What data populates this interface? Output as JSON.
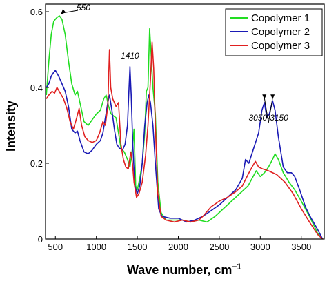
{
  "chart_data": {
    "type": "line",
    "xlabel": "Wave number, cm",
    "xlabel_sup": "−1",
    "ylabel": "Intensity",
    "xlim": [
      380,
      3780
    ],
    "ylim": [
      0,
      0.62
    ],
    "xticks": [
      500,
      1000,
      1500,
      2000,
      2500,
      3000,
      3500
    ],
    "xtick_labels": [
      "500",
      "1000",
      "1500",
      "2000",
      "2500",
      "3000",
      "3500"
    ],
    "yticks": [
      0,
      0.2,
      0.4,
      0.6
    ],
    "ytick_labels": [
      "0",
      "0.2",
      "0.4",
      "0.6"
    ],
    "grid": false,
    "legend_position": "top-right",
    "annotations": [
      {
        "text": "550",
        "x": 550,
        "y": 0.589
      },
      {
        "text": "1410",
        "x": 1410,
        "y": 0.455
      },
      {
        "text": "3050-3150",
        "x": 3100,
        "y": 0.365
      }
    ],
    "series": [
      {
        "name": "Copolymer 1",
        "color": "#22dd22",
        "points": [
          [
            390,
            0.38
          ],
          [
            420,
            0.47
          ],
          [
            450,
            0.54
          ],
          [
            480,
            0.575
          ],
          [
            520,
            0.585
          ],
          [
            550,
            0.589
          ],
          [
            580,
            0.58
          ],
          [
            620,
            0.54
          ],
          [
            660,
            0.47
          ],
          [
            700,
            0.41
          ],
          [
            740,
            0.38
          ],
          [
            770,
            0.39
          ],
          [
            800,
            0.36
          ],
          [
            850,
            0.31
          ],
          [
            900,
            0.3
          ],
          [
            950,
            0.315
          ],
          [
            1000,
            0.33
          ],
          [
            1050,
            0.34
          ],
          [
            1090,
            0.37
          ],
          [
            1120,
            0.38
          ],
          [
            1150,
            0.35
          ],
          [
            1180,
            0.33
          ],
          [
            1210,
            0.325
          ],
          [
            1240,
            0.32
          ],
          [
            1270,
            0.28
          ],
          [
            1300,
            0.24
          ],
          [
            1340,
            0.23
          ],
          [
            1380,
            0.21
          ],
          [
            1410,
            0.19
          ],
          [
            1440,
            0.24
          ],
          [
            1460,
            0.29
          ],
          [
            1480,
            0.14
          ],
          [
            1500,
            0.13
          ],
          [
            1530,
            0.16
          ],
          [
            1560,
            0.2
          ],
          [
            1590,
            0.28
          ],
          [
            1610,
            0.39
          ],
          [
            1630,
            0.4
          ],
          [
            1650,
            0.555
          ],
          [
            1665,
            0.5
          ],
          [
            1690,
            0.4
          ],
          [
            1720,
            0.33
          ],
          [
            1750,
            0.15
          ],
          [
            1790,
            0.07
          ],
          [
            1850,
            0.05
          ],
          [
            1950,
            0.05
          ],
          [
            2050,
            0.05
          ],
          [
            2150,
            0.045
          ],
          [
            2250,
            0.05
          ],
          [
            2350,
            0.045
          ],
          [
            2450,
            0.06
          ],
          [
            2550,
            0.08
          ],
          [
            2650,
            0.1
          ],
          [
            2750,
            0.12
          ],
          [
            2850,
            0.14
          ],
          [
            2950,
            0.18
          ],
          [
            3000,
            0.165
          ],
          [
            3050,
            0.175
          ],
          [
            3100,
            0.19
          ],
          [
            3150,
            0.21
          ],
          [
            3180,
            0.225
          ],
          [
            3220,
            0.21
          ],
          [
            3280,
            0.175
          ],
          [
            3350,
            0.15
          ],
          [
            3420,
            0.13
          ],
          [
            3500,
            0.1
          ],
          [
            3600,
            0.06
          ],
          [
            3700,
            0.015
          ],
          [
            3760,
            0.0
          ]
        ]
      },
      {
        "name": "Copolymer 2",
        "color": "#1a1ab5",
        "points": [
          [
            390,
            0.4
          ],
          [
            420,
            0.41
          ],
          [
            450,
            0.43
          ],
          [
            480,
            0.44
          ],
          [
            500,
            0.445
          ],
          [
            540,
            0.43
          ],
          [
            580,
            0.41
          ],
          [
            620,
            0.39
          ],
          [
            660,
            0.35
          ],
          [
            700,
            0.29
          ],
          [
            740,
            0.28
          ],
          [
            770,
            0.285
          ],
          [
            800,
            0.26
          ],
          [
            850,
            0.23
          ],
          [
            900,
            0.225
          ],
          [
            950,
            0.235
          ],
          [
            1000,
            0.25
          ],
          [
            1050,
            0.26
          ],
          [
            1080,
            0.28
          ],
          [
            1110,
            0.32
          ],
          [
            1140,
            0.36
          ],
          [
            1160,
            0.38
          ],
          [
            1190,
            0.34
          ],
          [
            1220,
            0.29
          ],
          [
            1250,
            0.25
          ],
          [
            1280,
            0.24
          ],
          [
            1320,
            0.235
          ],
          [
            1350,
            0.25
          ],
          [
            1380,
            0.3
          ],
          [
            1395,
            0.38
          ],
          [
            1410,
            0.455
          ],
          [
            1425,
            0.38
          ],
          [
            1445,
            0.25
          ],
          [
            1470,
            0.14
          ],
          [
            1500,
            0.12
          ],
          [
            1530,
            0.14
          ],
          [
            1560,
            0.2
          ],
          [
            1590,
            0.3
          ],
          [
            1620,
            0.36
          ],
          [
            1640,
            0.38
          ],
          [
            1660,
            0.36
          ],
          [
            1690,
            0.3
          ],
          [
            1720,
            0.2
          ],
          [
            1760,
            0.08
          ],
          [
            1800,
            0.06
          ],
          [
            1900,
            0.055
          ],
          [
            2000,
            0.055
          ],
          [
            2100,
            0.045
          ],
          [
            2200,
            0.05
          ],
          [
            2300,
            0.06
          ],
          [
            2400,
            0.075
          ],
          [
            2500,
            0.09
          ],
          [
            2600,
            0.11
          ],
          [
            2700,
            0.13
          ],
          [
            2780,
            0.16
          ],
          [
            2820,
            0.21
          ],
          [
            2860,
            0.2
          ],
          [
            2920,
            0.24
          ],
          [
            2980,
            0.28
          ],
          [
            3020,
            0.34
          ],
          [
            3050,
            0.36
          ],
          [
            3080,
            0.32
          ],
          [
            3110,
            0.33
          ],
          [
            3150,
            0.365
          ],
          [
            3180,
            0.34
          ],
          [
            3220,
            0.27
          ],
          [
            3280,
            0.19
          ],
          [
            3330,
            0.175
          ],
          [
            3380,
            0.175
          ],
          [
            3420,
            0.165
          ],
          [
            3480,
            0.13
          ],
          [
            3550,
            0.085
          ],
          [
            3620,
            0.055
          ],
          [
            3700,
            0.025
          ],
          [
            3760,
            0.0
          ]
        ]
      },
      {
        "name": "Copolymer 3",
        "color": "#e02020",
        "points": [
          [
            390,
            0.37
          ],
          [
            420,
            0.38
          ],
          [
            460,
            0.39
          ],
          [
            490,
            0.385
          ],
          [
            520,
            0.4
          ],
          [
            560,
            0.385
          ],
          [
            600,
            0.37
          ],
          [
            640,
            0.345
          ],
          [
            680,
            0.31
          ],
          [
            720,
            0.29
          ],
          [
            760,
            0.32
          ],
          [
            790,
            0.345
          ],
          [
            820,
            0.3
          ],
          [
            860,
            0.27
          ],
          [
            900,
            0.26
          ],
          [
            950,
            0.255
          ],
          [
            1000,
            0.26
          ],
          [
            1040,
            0.28
          ],
          [
            1080,
            0.31
          ],
          [
            1110,
            0.3
          ],
          [
            1140,
            0.35
          ],
          [
            1160,
            0.5
          ],
          [
            1175,
            0.4
          ],
          [
            1200,
            0.37
          ],
          [
            1240,
            0.35
          ],
          [
            1270,
            0.36
          ],
          [
            1300,
            0.25
          ],
          [
            1330,
            0.21
          ],
          [
            1360,
            0.19
          ],
          [
            1390,
            0.185
          ],
          [
            1420,
            0.23
          ],
          [
            1440,
            0.2
          ],
          [
            1460,
            0.15
          ],
          [
            1490,
            0.11
          ],
          [
            1520,
            0.12
          ],
          [
            1560,
            0.15
          ],
          [
            1600,
            0.22
          ],
          [
            1630,
            0.3
          ],
          [
            1660,
            0.42
          ],
          [
            1680,
            0.52
          ],
          [
            1700,
            0.45
          ],
          [
            1720,
            0.3
          ],
          [
            1750,
            0.12
          ],
          [
            1790,
            0.06
          ],
          [
            1850,
            0.05
          ],
          [
            1950,
            0.045
          ],
          [
            2050,
            0.05
          ],
          [
            2150,
            0.045
          ],
          [
            2250,
            0.05
          ],
          [
            2300,
            0.06
          ],
          [
            2400,
            0.085
          ],
          [
            2500,
            0.1
          ],
          [
            2600,
            0.11
          ],
          [
            2700,
            0.125
          ],
          [
            2780,
            0.14
          ],
          [
            2850,
            0.17
          ],
          [
            2900,
            0.19
          ],
          [
            2940,
            0.205
          ],
          [
            2980,
            0.19
          ],
          [
            3030,
            0.185
          ],
          [
            3100,
            0.18
          ],
          [
            3200,
            0.17
          ],
          [
            3300,
            0.15
          ],
          [
            3400,
            0.12
          ],
          [
            3500,
            0.08
          ],
          [
            3600,
            0.045
          ],
          [
            3700,
            0.012
          ],
          [
            3760,
            0.0
          ]
        ]
      }
    ]
  }
}
